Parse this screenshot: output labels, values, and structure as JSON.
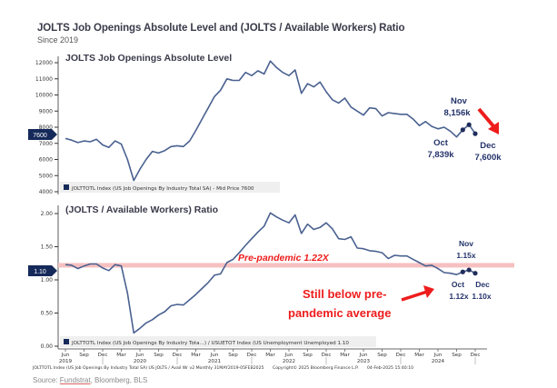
{
  "header": {
    "title": "JOLTS Job Openings Absolute Level and (JOLTS / Available Workers) Ratio",
    "subtitle": "Since 2019"
  },
  "chart_data": [
    {
      "type": "line",
      "title": "JOLTS Job Openings Absolute Level",
      "ylabel": "",
      "ylim": [
        4000,
        12000
      ],
      "yticks": [
        4000,
        5000,
        6000,
        7000,
        8000,
        9000,
        10000,
        11000,
        12000
      ],
      "ytick_labels": [
        "4000",
        "5000",
        "6000",
        "7000",
        "8000",
        "9000",
        "10000",
        "11000",
        "12000"
      ],
      "last_value_tag": "7600",
      "legend": "JOLTTOTL Index (US Job Openings By Industry Total SA) - Mid Price 7600",
      "legend_position": "bottom-left",
      "series": [
        {
          "name": "JOLTTOTL Index",
          "color": "#4a6190",
          "x_start": "Jun 2019",
          "values": [
            7300,
            7200,
            7050,
            7150,
            7100,
            7250,
            6900,
            6750,
            7150,
            6950,
            6000,
            4700,
            5400,
            6000,
            6500,
            6400,
            6550,
            6800,
            6850,
            6800,
            7150,
            7800,
            8500,
            9200,
            9900,
            10300,
            11000,
            10900,
            10900,
            11400,
            11200,
            11500,
            11300,
            12100,
            11700,
            11400,
            11200,
            11550,
            10100,
            10700,
            10500,
            10800,
            10200,
            9700,
            9500,
            9800,
            9250,
            9000,
            8750,
            9200,
            9150,
            8700,
            8900,
            8850,
            8800,
            8800,
            8500,
            8100,
            8350,
            8050,
            7900,
            8000,
            7750,
            7400,
            7839,
            8156,
            7600
          ]
        }
      ],
      "annotations": [
        {
          "label": "Oct",
          "value": "7,839k"
        },
        {
          "label": "Nov",
          "value": "8,156k"
        },
        {
          "label": "Dec",
          "value": "7,600k"
        }
      ]
    },
    {
      "type": "line",
      "title": "(JOLTS / Available Workers) Ratio",
      "ylim": [
        0,
        2.0
      ],
      "yticks": [
        0,
        0.5,
        1.0,
        1.5,
        2.0
      ],
      "ytick_labels": [
        "0.00",
        "0.50",
        "1.00",
        "1.50",
        "2.00"
      ],
      "last_value_tag": "1.10",
      "legend": "JOLTTOTL Index (US Job Openings By Industry Tota...) / USUETOT Index (US Unemployment Unemployed 1.10",
      "legend_position": "bottom-left",
      "reference_line": {
        "value": 1.22,
        "label": "Pre-pandemic 1.22X",
        "color": "#f4b6b6"
      },
      "series": [
        {
          "name": "JOLTS / Available Workers",
          "color": "#4a6190",
          "x_start": "Jun 2019",
          "values": [
            1.23,
            1.22,
            1.17,
            1.21,
            1.24,
            1.24,
            1.18,
            1.14,
            1.23,
            1.21,
            0.8,
            0.2,
            0.27,
            0.35,
            0.4,
            0.47,
            0.52,
            0.61,
            0.63,
            0.62,
            0.7,
            0.78,
            0.87,
            0.96,
            1.07,
            1.09,
            1.26,
            1.31,
            1.41,
            1.52,
            1.62,
            1.72,
            1.81,
            2.01,
            1.95,
            1.9,
            1.86,
            1.98,
            1.7,
            1.84,
            1.76,
            1.79,
            1.86,
            1.77,
            1.62,
            1.61,
            1.65,
            1.48,
            1.47,
            1.44,
            1.43,
            1.41,
            1.32,
            1.37,
            1.36,
            1.36,
            1.31,
            1.26,
            1.21,
            1.22,
            1.17,
            1.11,
            1.1,
            1.08,
            1.12,
            1.15,
            1.1
          ]
        }
      ],
      "annotations": [
        {
          "label": "Oct",
          "value": "1.12x"
        },
        {
          "label": "Nov",
          "value": "1.15x"
        },
        {
          "label": "Dec",
          "value": "1.10x"
        },
        {
          "label": "Still below pre-pandemic average"
        }
      ]
    }
  ],
  "x_axis": {
    "tick_labels": [
      "Jun",
      "Sep",
      "Dec",
      "Mar",
      "Jun",
      "Sep",
      "Dec",
      "Mar",
      "Jun",
      "Sep",
      "Dec",
      "Mar",
      "Jun",
      "Sep",
      "Dec",
      "Mar",
      "Jun",
      "Sep",
      "Dec",
      "Mar",
      "Jun",
      "Sep",
      "Dec"
    ],
    "year_labels": [
      "2019",
      "2020",
      "2021",
      "2022",
      "2023",
      "2024"
    ]
  },
  "labels": {
    "top_panel_title": "JOLTS Job Openings Absolute Level",
    "bottom_panel_title": "(JOLTS / Available Workers) Ratio",
    "top_tag": "7600",
    "bottom_tag": "1.10",
    "oct_top_label": "Oct",
    "oct_top_value": "7,839k",
    "nov_top_label": "Nov",
    "nov_top_value": "8,156k",
    "dec_top_label": "Dec",
    "dec_top_value": "7,600k",
    "oct_bot_label": "Oct",
    "oct_bot_value": "1.12x",
    "nov_bot_label": "Nov",
    "nov_bot_value": "1.15x",
    "dec_bot_label": "Dec",
    "dec_bot_value": "1.10x",
    "prepandemic": "Pre-pandemic 1.22X",
    "still_below_1": "Still below pre-",
    "still_below_2": "pandemic average",
    "top_legend": "JOLTTOTL Index (US Job Openings By Industry Total SA) - Mid Price 7600",
    "bottom_legend": "JOLTTOTL Index (US Job Openings By Industry Tota...) / USUETOT Index (US Unemployment Unemployed 1.10"
  },
  "footer": {
    "left": "JOLTTOTL Index (US Job Openings By Industry Total SA) US JOLTS / Avail Wr v2  Monthly 31MAY2019-05FEB2025",
    "middle": "Copyright© 2025 Bloomberg Finance L.P.",
    "right": "04-Feb-2025 15:40:10"
  },
  "source": {
    "prefix": "Source: ",
    "link": "Fundstrat",
    "rest": ", Bloomberg, BLS"
  },
  "colors": {
    "line": "#4a6190",
    "marker": "#1f2d5c",
    "annotation_text": "#24336a",
    "arrow": "#ee1c1c",
    "reference_band": "#f6c0c0",
    "tag_bg": "#152a5a"
  }
}
